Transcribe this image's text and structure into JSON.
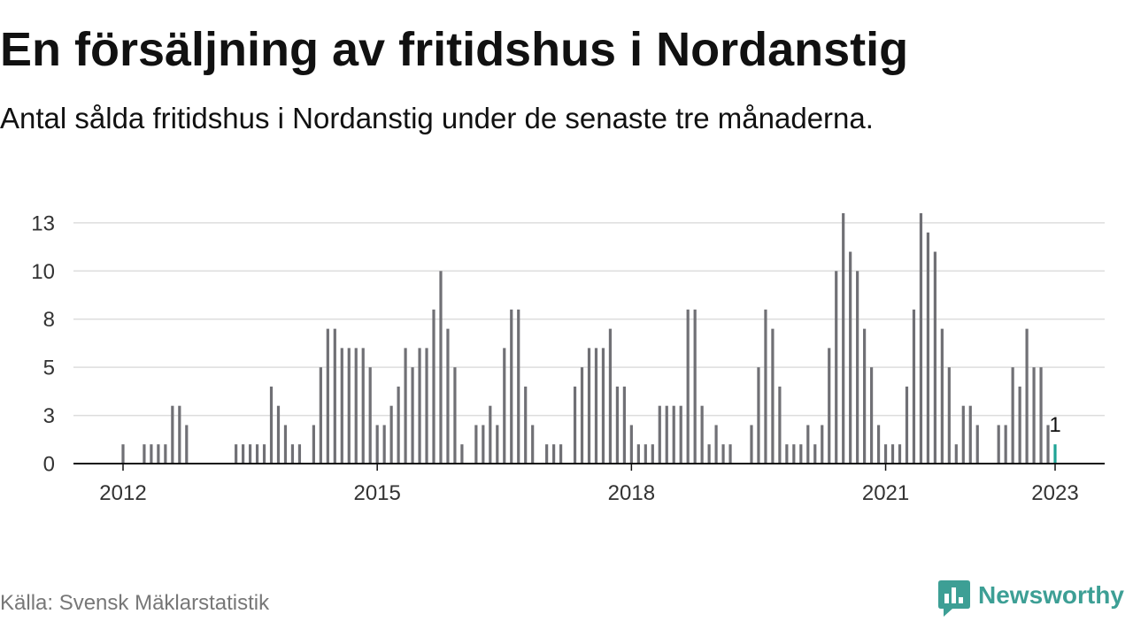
{
  "source": "Källa: Svensk Mäklarstatistik",
  "logo": {
    "text": "Newsworthy",
    "icon": "newsworthy-logo-icon"
  },
  "colors": {
    "bar": "#707075",
    "highlight": "#1fa395",
    "grid": "#dddddd",
    "axis": "#111111",
    "tick_label": "#333333",
    "text": "#111111",
    "source": "#777777",
    "logo": "#3d9f95"
  },
  "chart_data": {
    "type": "bar",
    "title": "En försäljning av fritidshus i Nordanstig",
    "subtitle": "Antal sålda fritidshus i Nordanstig under de senaste tre månaderna.",
    "x": [
      "2012-01",
      "2012-02",
      "2012-03",
      "2012-04",
      "2012-05",
      "2012-06",
      "2012-07",
      "2012-08",
      "2012-09",
      "2012-10",
      "2012-11",
      "2012-12",
      "2013-01",
      "2013-02",
      "2013-03",
      "2013-04",
      "2013-05",
      "2013-06",
      "2013-07",
      "2013-08",
      "2013-09",
      "2013-10",
      "2013-11",
      "2013-12",
      "2014-01",
      "2014-02",
      "2014-03",
      "2014-04",
      "2014-05",
      "2014-06",
      "2014-07",
      "2014-08",
      "2014-09",
      "2014-10",
      "2014-11",
      "2014-12",
      "2015-01",
      "2015-02",
      "2015-03",
      "2015-04",
      "2015-05",
      "2015-06",
      "2015-07",
      "2015-08",
      "2015-09",
      "2015-10",
      "2015-11",
      "2015-12",
      "2016-01",
      "2016-02",
      "2016-03",
      "2016-04",
      "2016-05",
      "2016-06",
      "2016-07",
      "2016-08",
      "2016-09",
      "2016-10",
      "2016-11",
      "2016-12",
      "2017-01",
      "2017-02",
      "2017-03",
      "2017-04",
      "2017-05",
      "2017-06",
      "2017-07",
      "2017-08",
      "2017-09",
      "2017-10",
      "2017-11",
      "2017-12",
      "2018-01",
      "2018-02",
      "2018-03",
      "2018-04",
      "2018-05",
      "2018-06",
      "2018-07",
      "2018-08",
      "2018-09",
      "2018-10",
      "2018-11",
      "2018-12",
      "2019-01",
      "2019-02",
      "2019-03",
      "2019-04",
      "2019-05",
      "2019-06",
      "2019-07",
      "2019-08",
      "2019-09",
      "2019-10",
      "2019-11",
      "2019-12",
      "2020-01",
      "2020-02",
      "2020-03",
      "2020-04",
      "2020-05",
      "2020-06",
      "2020-07",
      "2020-08",
      "2020-09",
      "2020-10",
      "2020-11",
      "2020-12",
      "2021-01",
      "2021-02",
      "2021-03",
      "2021-04",
      "2021-05",
      "2021-06",
      "2021-07",
      "2021-08",
      "2021-09",
      "2021-10",
      "2021-11",
      "2021-12",
      "2022-01",
      "2022-02",
      "2022-03",
      "2022-04",
      "2022-05",
      "2022-06",
      "2022-07",
      "2022-08",
      "2022-09",
      "2022-10",
      "2022-11",
      "2022-12",
      "2023-01"
    ],
    "values": [
      1,
      0,
      0,
      1,
      1,
      1,
      1,
      3,
      3,
      2,
      0,
      0,
      0,
      0,
      0,
      0,
      1,
      1,
      1,
      1,
      1,
      4,
      3,
      2,
      1,
      1,
      0,
      2,
      5,
      7,
      7,
      6,
      6,
      6,
      6,
      5,
      2,
      2,
      3,
      4,
      6,
      5,
      6,
      6,
      8,
      10,
      7,
      5,
      1,
      0,
      2,
      2,
      3,
      2,
      6,
      8,
      8,
      4,
      2,
      0,
      1,
      1,
      1,
      0,
      4,
      5,
      6,
      6,
      6,
      7,
      4,
      4,
      2,
      1,
      1,
      1,
      3,
      3,
      3,
      3,
      8,
      8,
      3,
      1,
      2,
      1,
      1,
      0,
      0,
      2,
      5,
      8,
      7,
      4,
      1,
      1,
      1,
      2,
      1,
      2,
      6,
      10,
      13,
      11,
      10,
      7,
      5,
      2,
      1,
      1,
      1,
      4,
      8,
      13,
      12,
      11,
      7,
      5,
      1,
      3,
      3,
      2,
      0,
      0,
      2,
      2,
      5,
      4,
      7,
      5,
      5,
      2,
      1
    ],
    "ylim": [
      0,
      13
    ],
    "yticks": [
      {
        "value": 0,
        "label": "0"
      },
      {
        "value": 2.5,
        "label": "3"
      },
      {
        "value": 5,
        "label": "5"
      },
      {
        "value": 7.5,
        "label": "8"
      },
      {
        "value": 10,
        "label": "10"
      },
      {
        "value": 12.5,
        "label": "13"
      }
    ],
    "xticks": [
      {
        "x": "2012-01",
        "label": "2012"
      },
      {
        "x": "2015-01",
        "label": "2015"
      },
      {
        "x": "2018-01",
        "label": "2018"
      },
      {
        "x": "2021-01",
        "label": "2021"
      },
      {
        "x": "2023-01",
        "label": "2023"
      }
    ],
    "highlight": {
      "x": "2023-01",
      "label": "1"
    },
    "grid": true
  }
}
